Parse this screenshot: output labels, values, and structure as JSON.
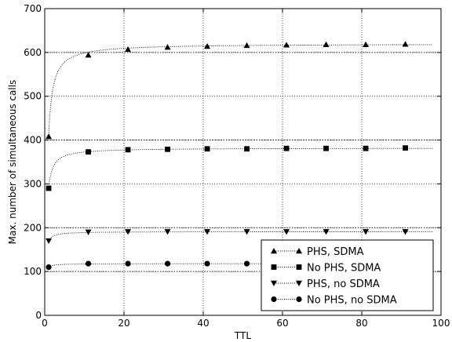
{
  "chart_data": {
    "type": "line",
    "title": "",
    "xlabel": "TTL",
    "ylabel": "Max. number of simultaneous calls",
    "xlim": [
      0,
      100
    ],
    "ylim": [
      0,
      700
    ],
    "x_ticks": [
      0,
      20,
      40,
      60,
      80,
      100
    ],
    "y_ticks": [
      0,
      100,
      200,
      300,
      400,
      500,
      600,
      700
    ],
    "grid": "on (dotted)",
    "legend_position": "lower-right",
    "x": [
      1,
      11,
      21,
      31,
      41,
      51,
      61,
      71,
      81,
      91
    ],
    "series": [
      {
        "name": "PHS, SDMA",
        "marker": "triangle-up",
        "values": [
          408,
          594,
          607,
          612,
          614,
          616,
          617,
          618,
          618,
          619
        ],
        "fit_asymptote": 620
      },
      {
        "name": "No PHS, SDMA",
        "marker": "square",
        "values": [
          290,
          373,
          378,
          379,
          380,
          380,
          381,
          381,
          381,
          382
        ],
        "fit_asymptote": 382
      },
      {
        "name": "PHS, no SDMA",
        "marker": "triangle-down",
        "values": [
          170,
          190,
          191,
          191,
          191,
          191,
          191,
          191,
          191,
          191
        ],
        "fit_asymptote": 191
      },
      {
        "name": "No PHS, no SDMA",
        "marker": "circle",
        "values": [
          110,
          118,
          118,
          118,
          118,
          118,
          118,
          118,
          118,
          118
        ],
        "fit_asymptote": 118
      }
    ],
    "reference_lines_y": [
      100,
      200,
      400,
      600
    ]
  }
}
